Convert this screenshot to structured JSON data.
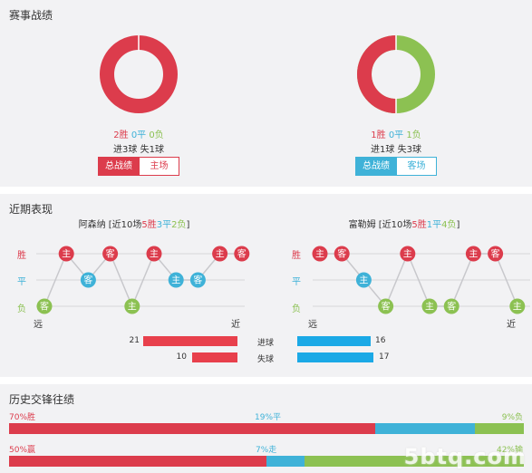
{
  "summary": {
    "title": "赛事战绩",
    "left": {
      "wins": "2胜",
      "draws": "0平",
      "losses": "0负",
      "goals": "进3球 失1球",
      "donut": {
        "win": 2,
        "draw": 0,
        "loss": 0
      },
      "buttons": [
        "总战绩",
        "主场"
      ]
    },
    "right": {
      "wins": "1胜",
      "draws": "0平",
      "losses": "1负",
      "goals": "进1球 失3球",
      "donut": {
        "win": 1,
        "draw": 0,
        "loss": 1
      },
      "buttons": [
        "总战绩",
        "客场"
      ]
    }
  },
  "recent": {
    "title": "近期表现",
    "row_labels": [
      "胜",
      "平",
      "负"
    ],
    "far_label": "远",
    "near_label": "近",
    "home": {
      "team": "阿森纳",
      "prefix": " [近10场",
      "w": "5胜",
      "d": "3平",
      "l": "2负",
      "suffix": "]",
      "matches": [
        {
          "r": "L",
          "v": "客"
        },
        {
          "r": "W",
          "v": "主"
        },
        {
          "r": "D",
          "v": "客"
        },
        {
          "r": "W",
          "v": "客"
        },
        {
          "r": "L",
          "v": "主"
        },
        {
          "r": "W",
          "v": "主"
        },
        {
          "r": "D",
          "v": "主"
        },
        {
          "r": "D",
          "v": "客"
        },
        {
          "r": "W",
          "v": "主"
        },
        {
          "r": "W",
          "v": "客"
        }
      ]
    },
    "away": {
      "team": "富勒姆",
      "prefix": " [近10场",
      "w": "5胜",
      "d": "1平",
      "l": "4负",
      "suffix": "]",
      "matches": [
        {
          "r": "W",
          "v": "主"
        },
        {
          "r": "W",
          "v": "客"
        },
        {
          "r": "D",
          "v": "主"
        },
        {
          "r": "L",
          "v": "客"
        },
        {
          "r": "W",
          "v": "主"
        },
        {
          "r": "L",
          "v": "主"
        },
        {
          "r": "L",
          "v": "客"
        },
        {
          "r": "W",
          "v": "主"
        },
        {
          "r": "W",
          "v": "客"
        },
        {
          "r": "L",
          "v": "主"
        }
      ]
    },
    "goals": {
      "scored_label": "进球",
      "conceded_label": "失球",
      "home_scored": "21",
      "home_conceded": "10",
      "away_scored": "16",
      "away_conceded": "17"
    }
  },
  "h2h": {
    "title": "历史交锋往绩",
    "row1": {
      "left": "70%胜",
      "mid": "19%平",
      "right": "9%负",
      "values": [
        70,
        19,
        9
      ]
    },
    "row2": {
      "left": "50%赢",
      "mid": "7%走",
      "right": "42%输",
      "values": [
        50,
        7,
        42
      ]
    }
  },
  "watermark": "5btq.com",
  "colors": {
    "win": "#dc3c4c",
    "draw": "#3fb2d8",
    "loss": "#8cc152",
    "bar_red": "#e8404c",
    "bar_blue": "#1ba9e6"
  }
}
